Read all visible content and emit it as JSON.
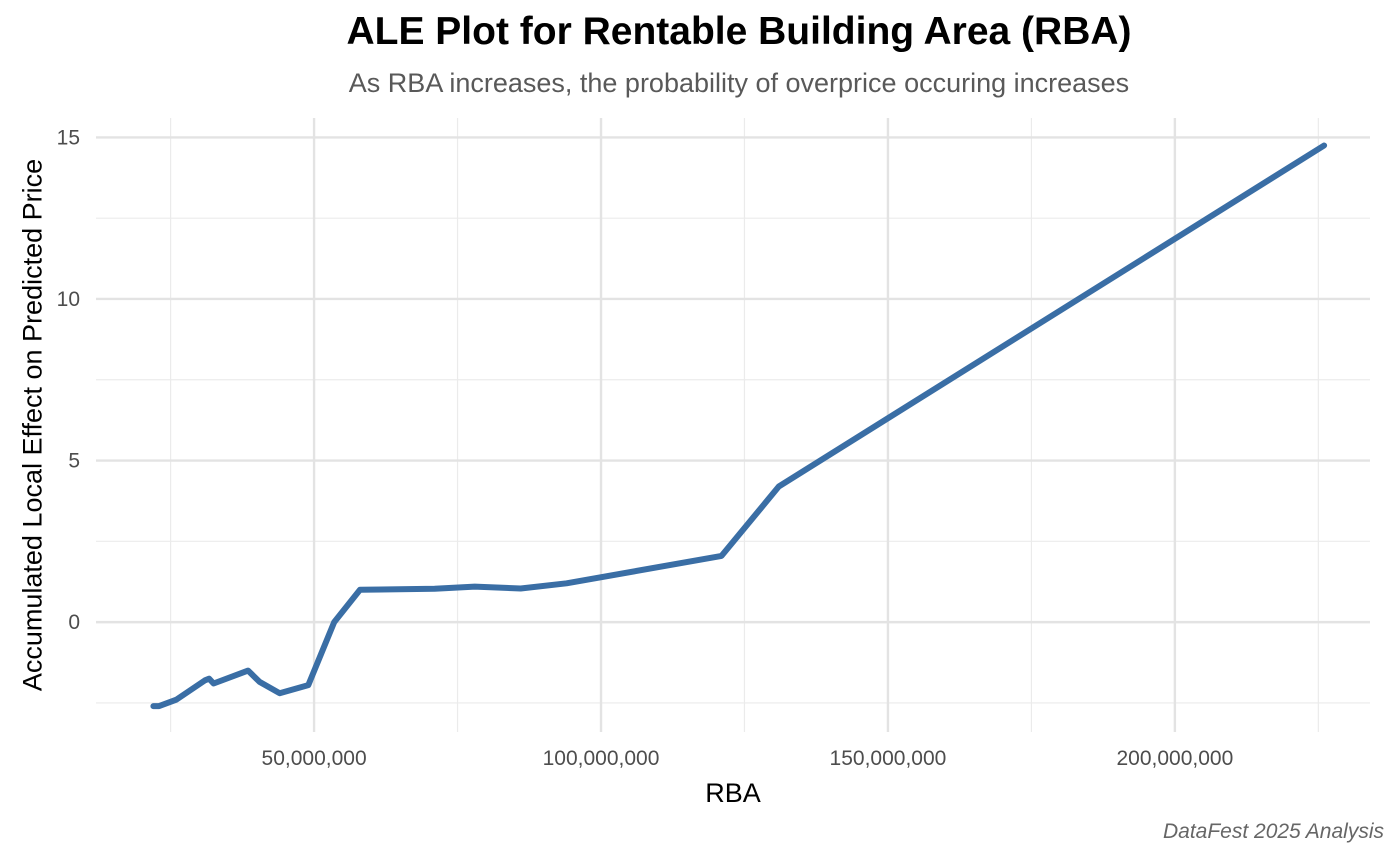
{
  "chart_data": {
    "type": "line",
    "title": "ALE Plot for Rentable Building Area (RBA)",
    "subtitle": "As RBA increases, the probability of overprice occuring increases",
    "xlabel": "RBA",
    "ylabel": "Accumulated Local Effect on Predicted Price",
    "caption": "DataFest 2025 Analysis",
    "xlim": [
      12000000,
      234000000
    ],
    "ylim": [
      -3.4,
      15.6
    ],
    "x_ticks": [
      50000000,
      100000000,
      150000000,
      200000000
    ],
    "x_tick_labels": [
      "50,000,000",
      "100,000,000",
      "150,000,000",
      "200,000,000"
    ],
    "y_ticks": [
      0,
      5,
      10,
      15
    ],
    "y_tick_labels": [
      "0",
      "5",
      "10",
      "15"
    ],
    "grid": true,
    "line_color": "#3A6EA5",
    "series": [
      {
        "x": [
          22000000,
          23000000,
          26000000,
          31000000,
          31700000,
          32500000,
          38500000,
          40500000,
          44000000,
          49000000,
          53500000,
          58000000,
          71000000,
          78000000,
          86000000,
          94000000,
          121000000,
          131000000,
          226000000
        ],
        "y": [
          -2.6,
          -2.6,
          -2.4,
          -1.8,
          -1.75,
          -1.9,
          -1.5,
          -1.85,
          -2.2,
          -1.95,
          0.0,
          1.0,
          1.03,
          1.1,
          1.04,
          1.2,
          2.05,
          4.2,
          14.75
        ]
      }
    ]
  }
}
